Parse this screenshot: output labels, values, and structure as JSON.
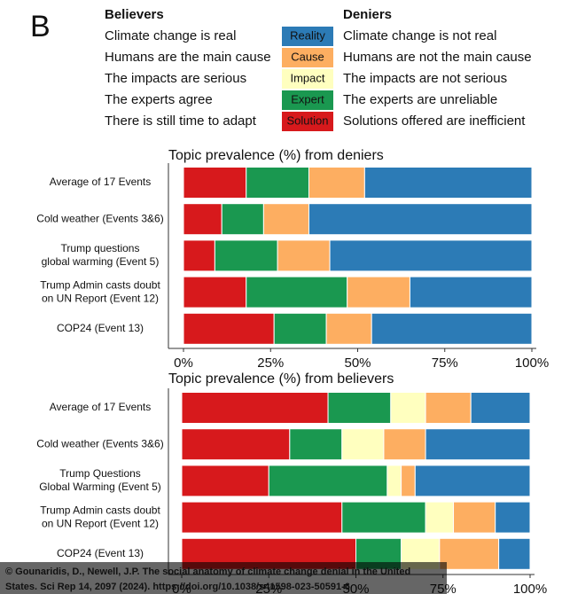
{
  "panel_label": "B",
  "legend": {
    "believers_title": "Believers",
    "deniers_title": "Deniers",
    "believers": [
      "Climate change is real",
      "Humans are the main cause",
      "The impacts are serious",
      "The experts agree",
      "There is still time to adapt"
    ],
    "deniers": [
      "Climate change is not real",
      "Humans are not the main cause",
      "The impacts are not serious",
      "The experts are unreliable",
      "Solutions offered are inefficient"
    ]
  },
  "chart_data": [
    {
      "type": "stacked-barh",
      "title": "Topic prevalence (%) from deniers",
      "categories": [
        [
          "Average of 17 Events"
        ],
        [
          "Cold weather (Events 3&6)"
        ],
        [
          "Trump questions",
          "global warming (Event 5)"
        ],
        [
          "Trump Admin casts doubt",
          "on UN Report (Event 12)"
        ],
        [
          "COP24 (Event 13)"
        ]
      ],
      "series": [
        {
          "name": "Solution",
          "color": "#d7191c",
          "values": [
            18,
            11,
            9,
            18,
            26
          ]
        },
        {
          "name": "Expert",
          "color": "#1a9850",
          "values": [
            18,
            12,
            18,
            29,
            15
          ]
        },
        {
          "name": "Impact",
          "color": "#ffffbf",
          "values": [
            0,
            0,
            0,
            0,
            0
          ]
        },
        {
          "name": "Cause",
          "color": "#fdae61",
          "values": [
            16,
            13,
            15,
            18,
            13
          ]
        },
        {
          "name": "Reality",
          "color": "#2c7bb6",
          "values": [
            48,
            64,
            58,
            35,
            46
          ]
        }
      ],
      "xlim": [
        0,
        100
      ],
      "xticks": [
        {
          "value": 0,
          "label": "0%"
        },
        {
          "value": 25,
          "label": "25%"
        },
        {
          "value": 50,
          "label": "50%"
        },
        {
          "value": 75,
          "label": "75%"
        },
        {
          "value": 100,
          "label": "100%"
        }
      ]
    },
    {
      "type": "stacked-barh",
      "title": "Topic prevalence (%) from believers",
      "categories": [
        [
          "Average of 17 Events"
        ],
        [
          "Cold weather (Events 3&6)"
        ],
        [
          "Trump Questions",
          "Global Warming (Event 5)"
        ],
        [
          "Trump Admin casts doubt",
          "on UN Report (Event 12)"
        ],
        [
          "COP24 (Event 13)"
        ]
      ],
      "series": [
        {
          "name": "Solution",
          "color": "#d7191c",
          "values": [
            42,
            31,
            25,
            46,
            50
          ]
        },
        {
          "name": "Expert",
          "color": "#1a9850",
          "values": [
            18,
            15,
            34,
            24,
            13
          ]
        },
        {
          "name": "Impact",
          "color": "#ffffbf",
          "values": [
            10,
            12,
            4,
            8,
            11
          ]
        },
        {
          "name": "Cause",
          "color": "#fdae61",
          "values": [
            13,
            12,
            4,
            12,
            17
          ]
        },
        {
          "name": "Reality",
          "color": "#2c7bb6",
          "values": [
            17,
            30,
            33,
            10,
            9
          ]
        }
      ],
      "xlim": [
        0,
        100
      ],
      "xticks": [
        {
          "value": 0,
          "label": "0%"
        },
        {
          "value": 25,
          "label": "25%"
        },
        {
          "value": 50,
          "label": "50%"
        },
        {
          "value": 75,
          "label": "75%"
        },
        {
          "value": 100,
          "label": "100%"
        }
      ]
    }
  ],
  "credit": [
    "© Gounaridis, D., Newell, J.P. The social anatomy of climate change denial in the United",
    "States. Sci Rep 14, 2097 (2024). https://doi.org/10.1038/s41598-023-50591-6"
  ]
}
